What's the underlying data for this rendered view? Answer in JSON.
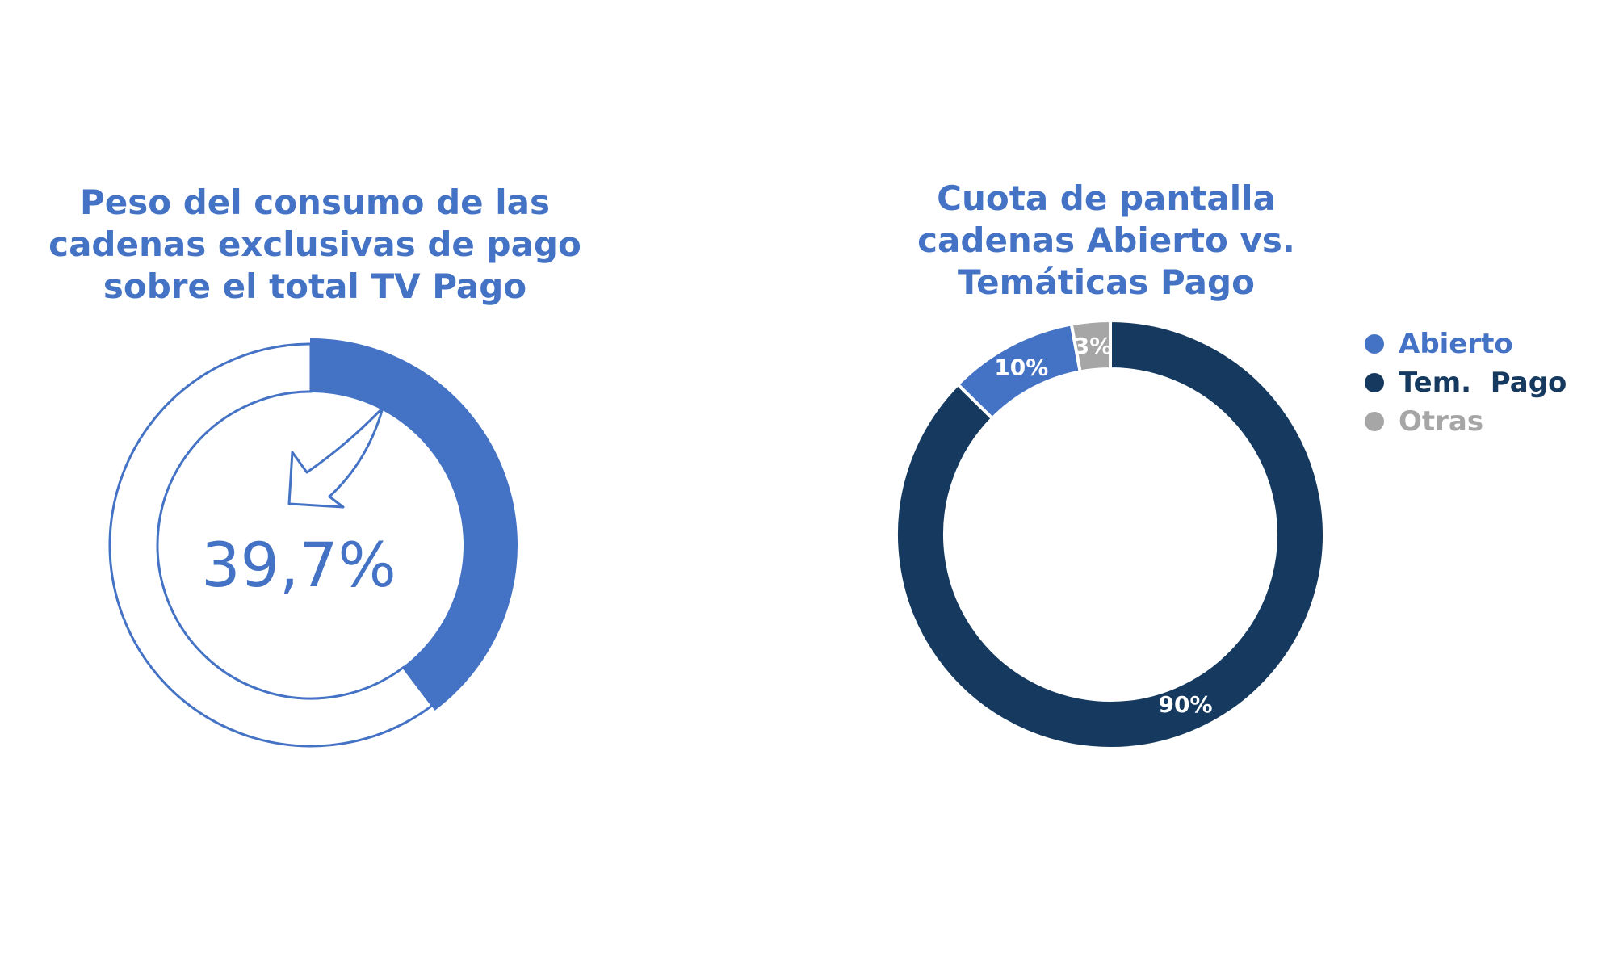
{
  "chart_data": [
    {
      "type": "pie",
      "title_lines": [
        "Peso del consumo de las",
        "cadenas exclusivas de pago",
        "sobre el total TV Pago"
      ],
      "value": 39.7,
      "label": "39,7%",
      "color": "#4472C4",
      "style": "donut"
    },
    {
      "type": "pie",
      "title_lines": [
        "Cuota de pantalla",
        "cadenas Abierto vs.",
        "Temáticas Pago"
      ],
      "slices": [
        {
          "name": "Abierto",
          "value": 10,
          "label": "10%",
          "color": "#4472C4"
        },
        {
          "name": "Tem.  Pago",
          "value": 90,
          "label": "90%",
          "color": "#163A5F"
        },
        {
          "name": "Otras",
          "value": 3,
          "label": "3%",
          "color": "#A6A6A6"
        }
      ],
      "legend_position": "right",
      "style": "donut"
    }
  ]
}
